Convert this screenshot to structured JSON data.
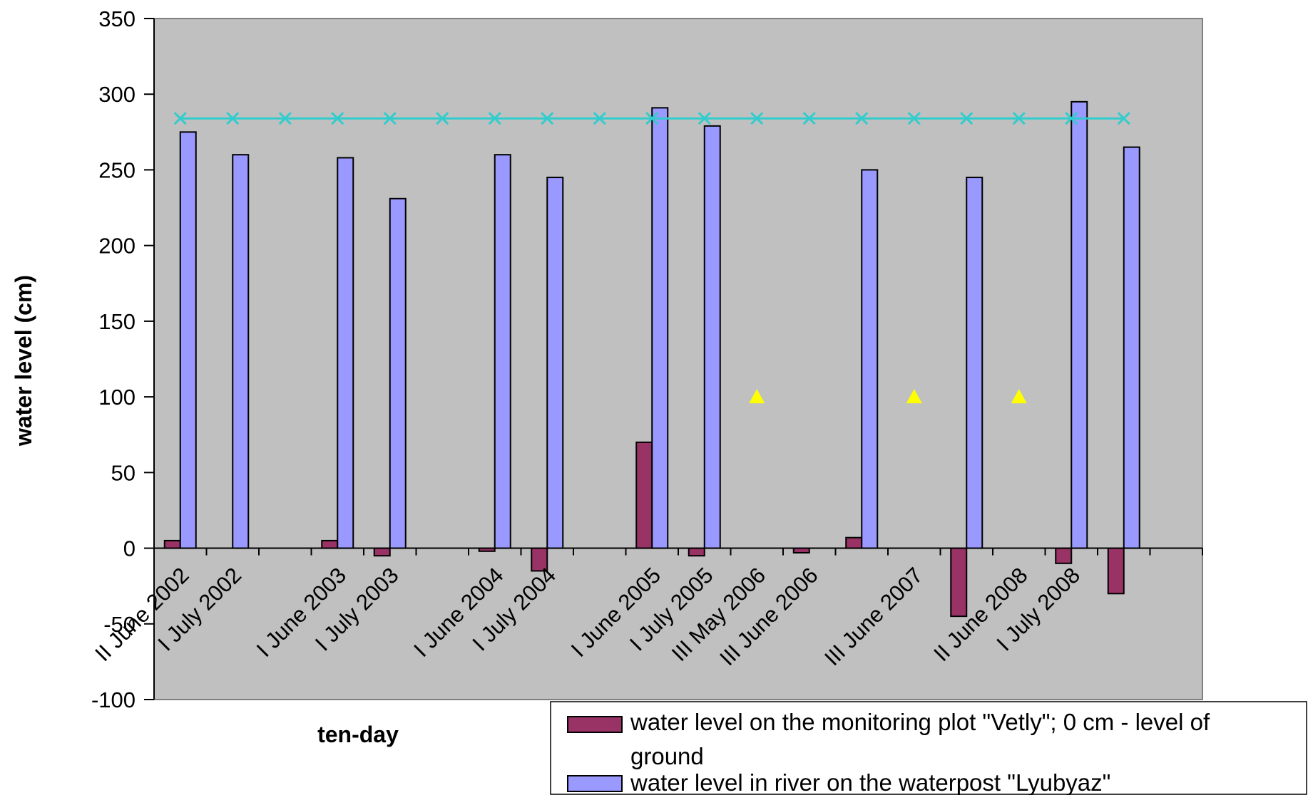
{
  "chart_data": {
    "type": "bar",
    "xlabel": "ten-day",
    "ylabel": "water level (cm)",
    "ylim": [
      -100,
      350
    ],
    "yticks": [
      350,
      300,
      250,
      200,
      150,
      100,
      50,
      0,
      -50,
      -100
    ],
    "grid": false,
    "plot_background": "#c0c0c0",
    "categories": [
      "II June 2002",
      "I July 2002",
      "",
      "I June 2003",
      "I July 2003",
      "",
      "I June 2004",
      "I July 2004",
      "",
      "I June 2005",
      "I July 2005",
      "III May 2006",
      "III June 2006",
      "",
      "III June 2007",
      "",
      "II June 2008",
      "I July 2008",
      "",
      ""
    ],
    "series": [
      {
        "name": "water level on the monitoring plot  \"Vetly\"; 0 cm - level of ground",
        "kind": "bar",
        "color": "#993366",
        "values": [
          5,
          null,
          null,
          5,
          -5,
          null,
          -2,
          -15,
          null,
          70,
          -5,
          null,
          -3,
          7,
          null,
          -45,
          null,
          -10,
          -30,
          null
        ]
      },
      {
        "name": "water level in river on the waterpost \"Lyubyaz\"",
        "kind": "bar",
        "color": "#9999ff",
        "values": [
          275,
          260,
          null,
          258,
          231,
          null,
          260,
          245,
          null,
          291,
          279,
          null,
          null,
          250,
          null,
          245,
          null,
          295,
          265,
          null
        ]
      },
      {
        "name": "",
        "kind": "line-x",
        "color": "#33cccc",
        "values": [
          284,
          284,
          284,
          284,
          284,
          284,
          284,
          284,
          284,
          284,
          284,
          284,
          284,
          284,
          284,
          284,
          284,
          284,
          284,
          null
        ]
      },
      {
        "name": "",
        "kind": "triangle",
        "color": "#ffff00",
        "values": [
          null,
          null,
          null,
          null,
          null,
          null,
          null,
          null,
          null,
          null,
          null,
          100,
          null,
          null,
          100,
          null,
          100,
          null,
          null,
          null
        ]
      }
    ]
  }
}
